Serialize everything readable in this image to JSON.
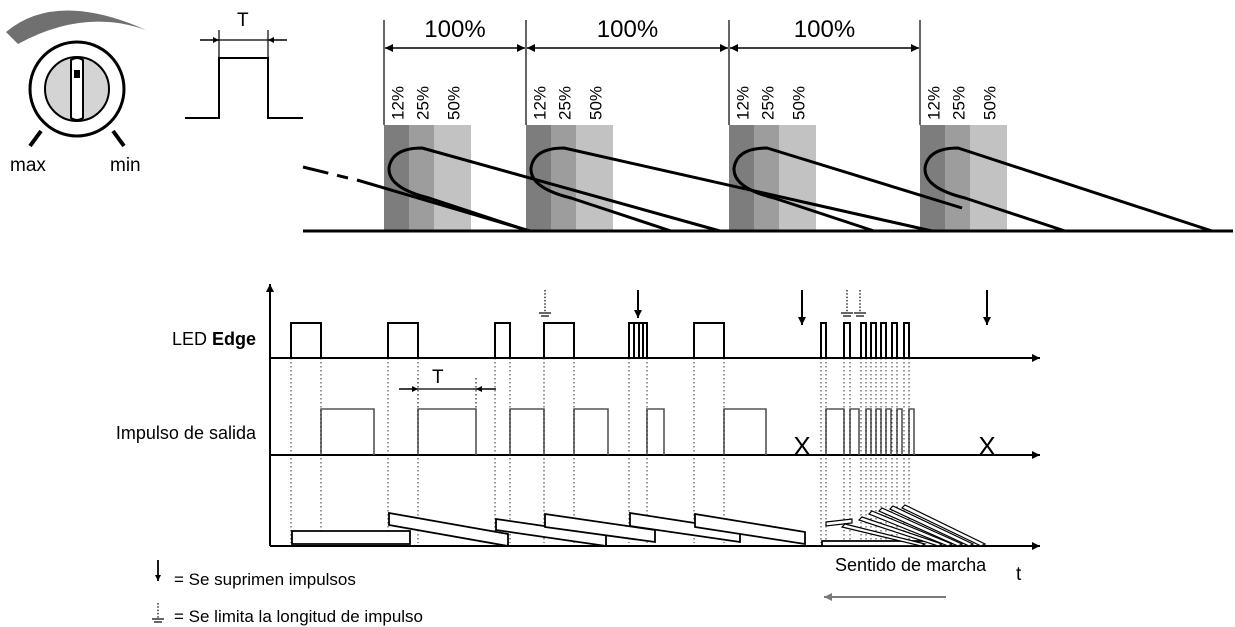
{
  "knob": {
    "max_label": "max",
    "min_label": "min"
  },
  "pulse_period": {
    "label": "T"
  },
  "intervals": {
    "label": "100%",
    "count": 3
  },
  "levels": {
    "labels": [
      "12%",
      "25%",
      "50%"
    ],
    "colors": [
      "#7d7d7d",
      "#9d9d9d",
      "#c2c2c2"
    ]
  },
  "timing": {
    "led_label_prefix": "LED ",
    "led_label_bold": "Edge",
    "output_label": "Impulso de salida",
    "period_label": "T",
    "time_axis_label": "t",
    "suppressed_mark": "X",
    "direction_label": "Sentido de marcha"
  },
  "legend": {
    "suppressed": "= Se suprimen impulsos",
    "limited": "= Se limita la longitud de impulso"
  }
}
